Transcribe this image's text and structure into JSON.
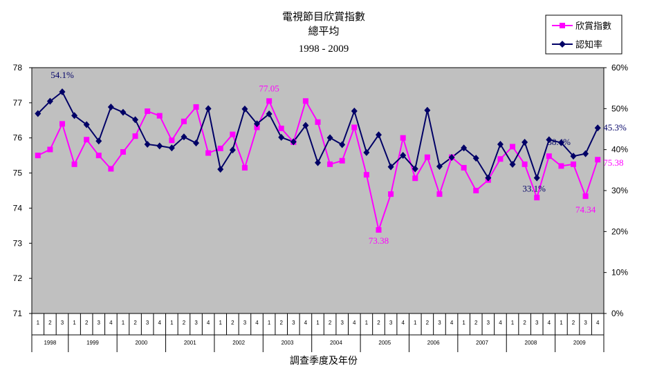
{
  "chart_data": {
    "type": "line",
    "title": "電視節目欣賞指數",
    "subtitle": "總平均",
    "period": "1998 - 2009",
    "xlabel": "調查季度及年份",
    "ylim": [
      71,
      78
    ],
    "y2lim": [
      0,
      60
    ],
    "y_ticks": [
      "71",
      "72",
      "73",
      "74",
      "75",
      "76",
      "77",
      "78"
    ],
    "y2_ticks": [
      "0%",
      "10%",
      "20%",
      "30%",
      "40%",
      "50%",
      "60%"
    ],
    "years": [
      "1998",
      "1999",
      "2000",
      "2001",
      "2002",
      "2003",
      "2004",
      "2005",
      "2006",
      "2007",
      "2008",
      "2009"
    ],
    "quarters": [
      "1",
      "2",
      "3",
      "4"
    ],
    "year_quarter_counts": [
      3,
      4,
      4,
      4,
      4,
      4,
      4,
      4,
      4,
      4,
      4,
      4
    ],
    "grid": false,
    "legend_position": "top-right",
    "series": [
      {
        "name": "欣賞指數",
        "axis": "left",
        "color": "#ff00ff",
        "marker": "square",
        "values": [
          75.5,
          75.67,
          76.4,
          75.25,
          75.95,
          75.5,
          75.12,
          75.6,
          76.05,
          76.76,
          76.63,
          75.93,
          76.47,
          76.88,
          75.57,
          75.7,
          76.1,
          75.15,
          76.3,
          77.05,
          76.27,
          75.88,
          77.05,
          76.45,
          75.25,
          75.35,
          76.3,
          74.95,
          73.38,
          74.4,
          76.0,
          74.85,
          75.45,
          74.4,
          75.45,
          75.15,
          74.5,
          74.8,
          75.4,
          75.75,
          75.25,
          74.3,
          75.48,
          75.2,
          75.25,
          74.34,
          75.38
        ]
      },
      {
        "name": "認知率",
        "axis": "right",
        "color": "#000066",
        "marker": "diamond",
        "values": [
          48.8,
          51.8,
          54.1,
          48.3,
          46.1,
          42.1,
          50.4,
          49.1,
          47.3,
          41.3,
          40.9,
          40.4,
          43.1,
          41.6,
          50.0,
          35.2,
          39.9,
          49.9,
          46.3,
          48.7,
          43.0,
          41.9,
          45.9,
          36.8,
          42.9,
          41.2,
          49.4,
          39.3,
          43.6,
          35.8,
          38.6,
          35.3,
          49.6,
          35.9,
          38.1,
          40.4,
          37.9,
          33.1,
          41.3,
          36.4,
          41.8,
          33.1,
          42.4,
          41.7,
          38.4,
          39.0,
          45.3
        ]
      }
    ],
    "annotations": [
      {
        "text": "54.1%",
        "series": 1,
        "index": 2
      },
      {
        "text": "77.05",
        "series": 0,
        "index": 19
      },
      {
        "text": "73.38",
        "series": 0,
        "index": 28
      },
      {
        "text": "45.3%",
        "series": 1,
        "index": 46
      },
      {
        "text": "38.4%",
        "series": 1,
        "index": 44
      },
      {
        "text": "75.38",
        "series": 0,
        "index": 46
      },
      {
        "text": "33.1%",
        "series": 1,
        "index": 41
      },
      {
        "text": "74.34",
        "series": 0,
        "index": 45
      }
    ]
  }
}
